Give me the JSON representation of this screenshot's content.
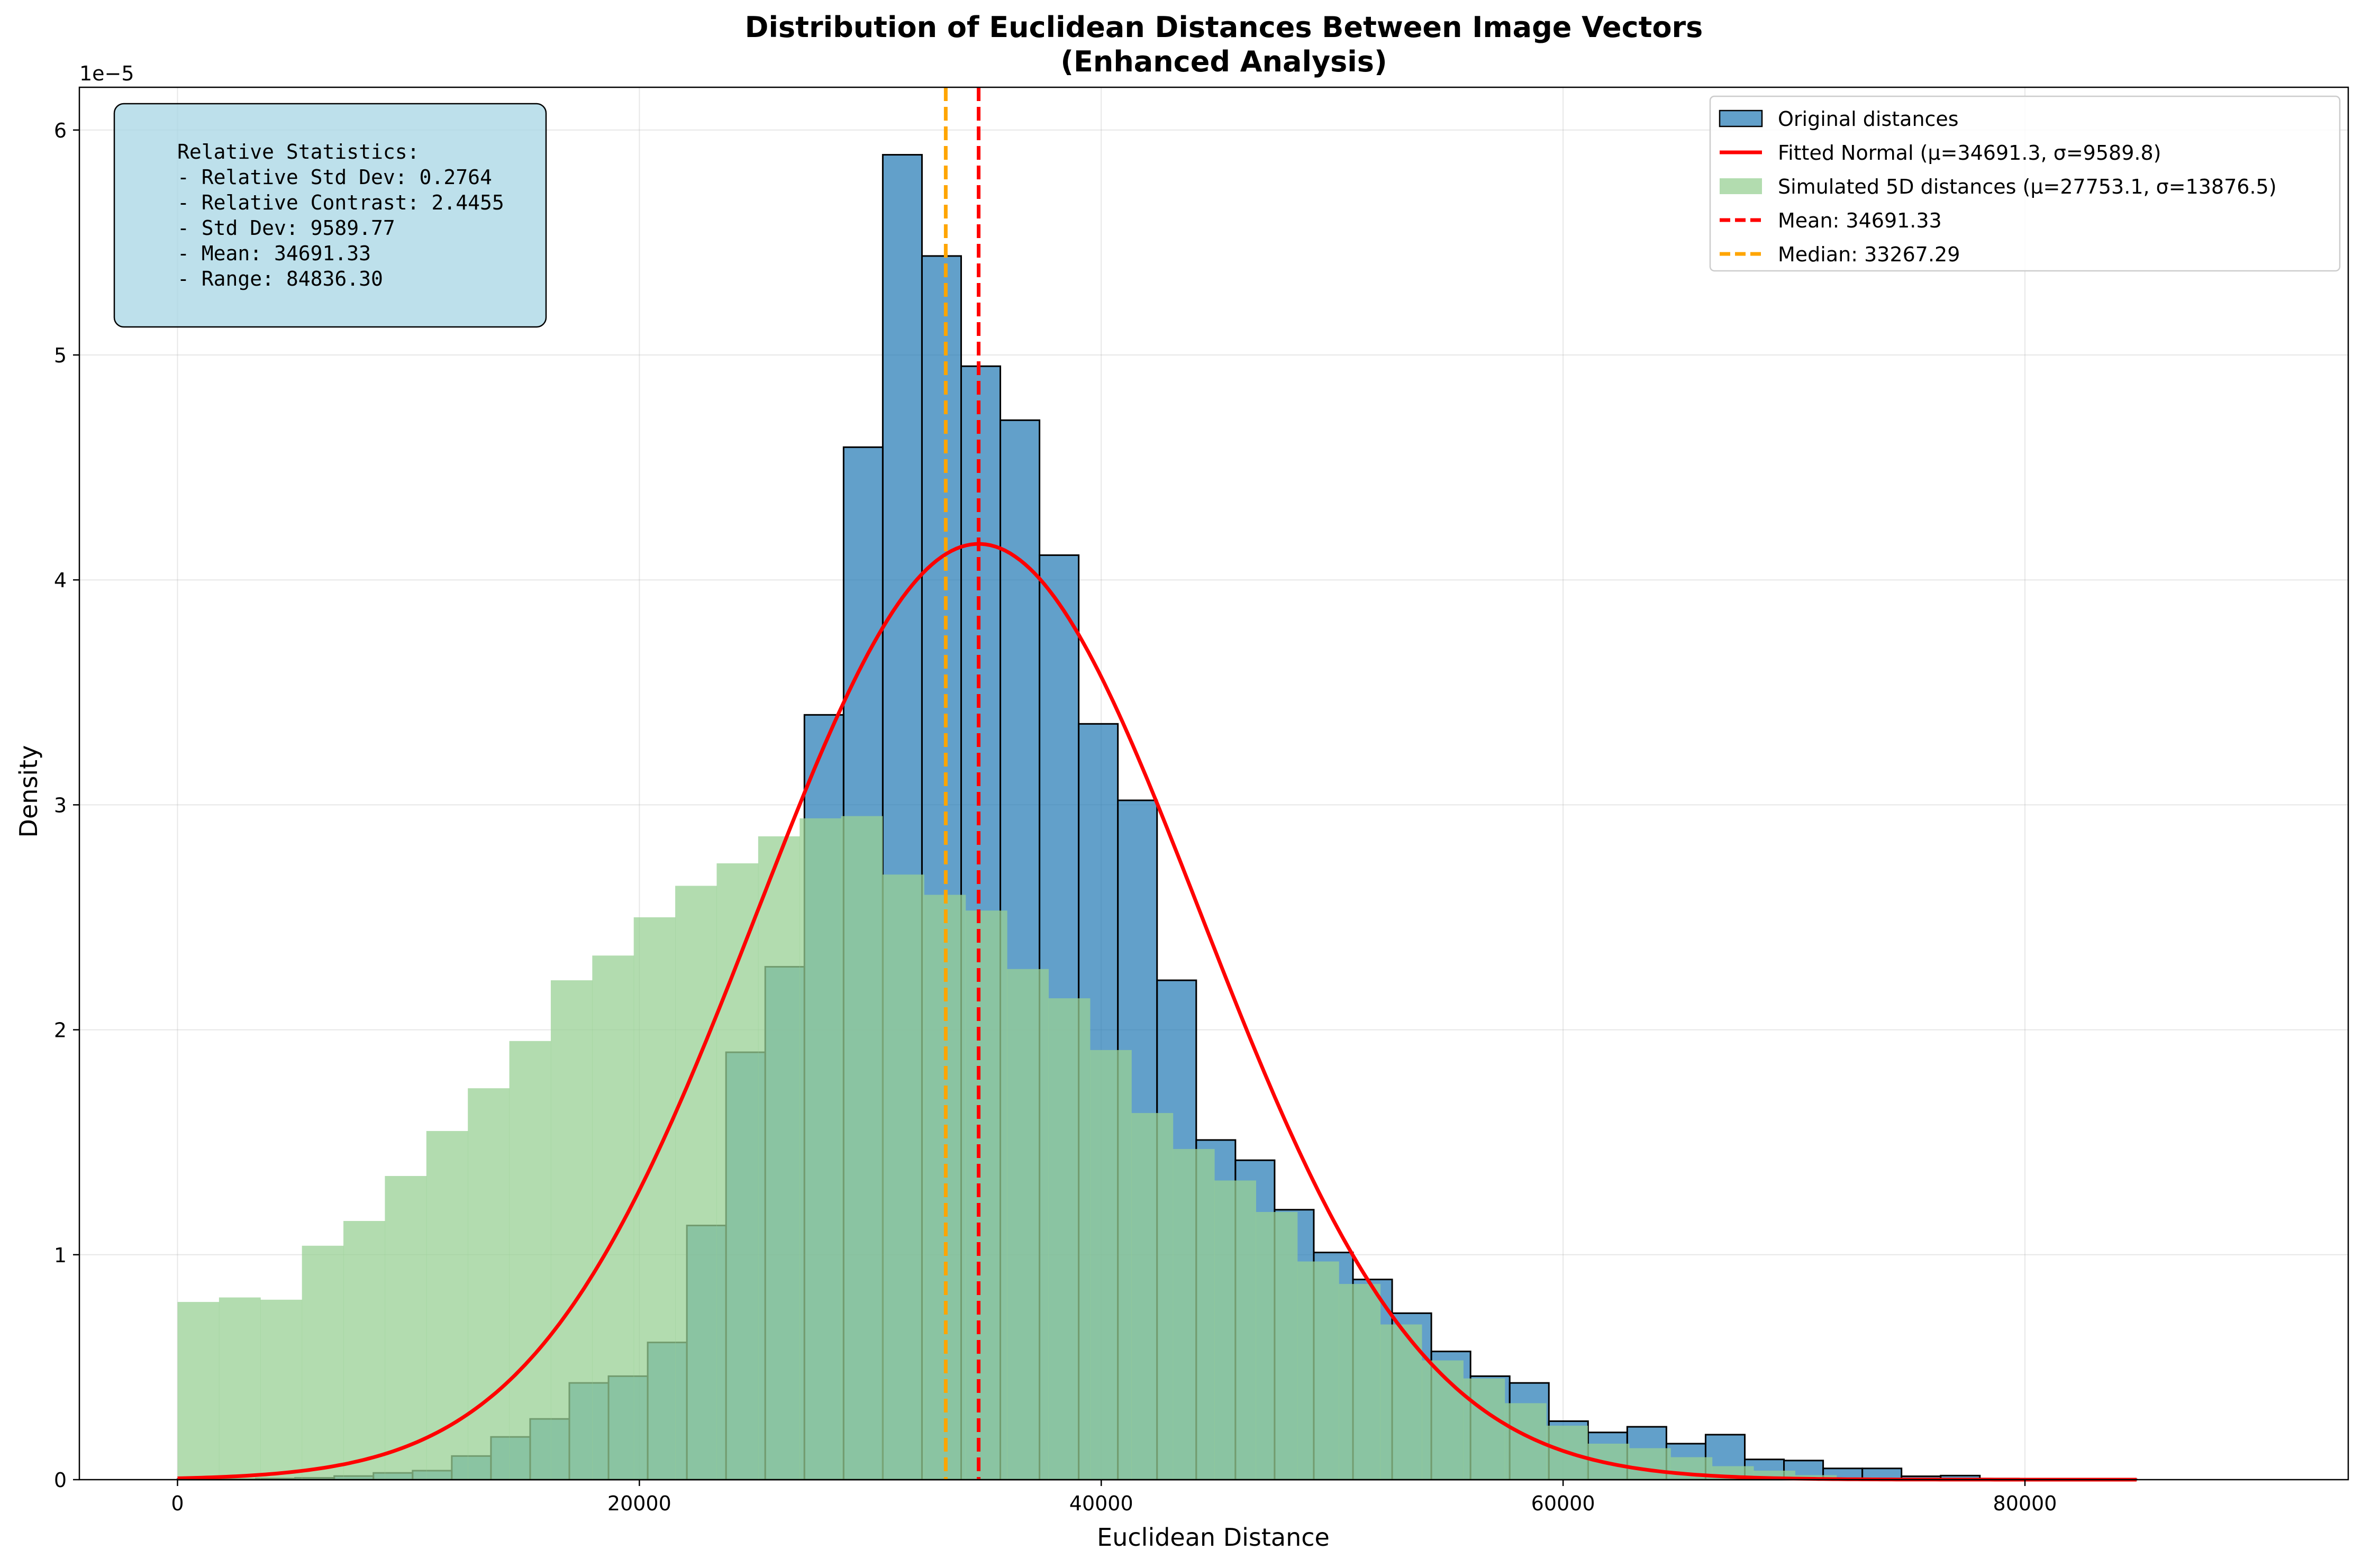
{
  "chart_data": {
    "type": "histogram",
    "title": "Distribution of Euclidean Distances Between Image Vectors",
    "subtitle": "(Enhanced Analysis)",
    "xlabel": "Euclidean Distance",
    "ylabel": "Density",
    "y_scale_label": "1e−5",
    "xlim": [
      -4250,
      94000
    ],
    "ylim": [
      0,
      6.19
    ],
    "x_ticks": [
      0,
      20000,
      40000,
      60000,
      80000
    ],
    "x_tick_labels": [
      "0",
      "20000",
      "40000",
      "60000",
      "80000"
    ],
    "y_ticks": [
      0,
      1,
      2,
      3,
      4,
      5,
      6
    ],
    "y_tick_labels": [
      "0",
      "1",
      "2",
      "3",
      "4",
      "5",
      "6"
    ],
    "grid": true,
    "legend_position": "top-right",
    "colors": {
      "original": "#1f77b4",
      "simulated": "#98d094",
      "fitted": "#ff0000",
      "mean_line": "#ff0000",
      "median_line": "#ffa500",
      "stats_box": "#add8e6"
    },
    "series": [
      {
        "name": "Original distances",
        "kind": "bars",
        "bin_start": 0,
        "bin_width": 1696.7,
        "values": [
          0.002,
          0.002,
          0.005,
          0.008,
          0.016,
          0.03,
          0.04,
          0.105,
          0.19,
          0.27,
          0.43,
          0.46,
          0.61,
          1.13,
          1.9,
          2.28,
          3.4,
          4.59,
          5.89,
          5.44,
          4.95,
          4.71,
          4.11,
          3.36,
          3.02,
          2.22,
          1.51,
          1.42,
          1.2,
          1.01,
          0.89,
          0.74,
          0.57,
          0.46,
          0.43,
          0.26,
          0.21,
          0.235,
          0.16,
          0.2,
          0.09,
          0.085,
          0.05,
          0.05,
          0.015,
          0.018,
          0.005,
          0.003,
          0.002,
          0.001
        ]
      },
      {
        "name": "Simulated 5D distances (μ=27753.1, σ=13876.5)",
        "kind": "bars",
        "bin_start": 0,
        "bin_width": 1796,
        "values": [
          0.79,
          0.81,
          0.8,
          1.04,
          1.15,
          1.35,
          1.55,
          1.74,
          1.95,
          2.22,
          2.33,
          2.5,
          2.64,
          2.74,
          2.86,
          2.94,
          2.95,
          2.69,
          2.6,
          2.53,
          2.27,
          2.14,
          1.91,
          1.63,
          1.47,
          1.33,
          1.19,
          0.97,
          0.87,
          0.69,
          0.53,
          0.45,
          0.34,
          0.24,
          0.16,
          0.14,
          0.1,
          0.06,
          0.04,
          0.02,
          0.01
        ]
      },
      {
        "name": "Fitted Normal (μ=34691.3, σ=9589.8)",
        "kind": "normal_curve",
        "mu": 34691.3,
        "sigma": 9589.8,
        "x_range": [
          0,
          84836.3
        ]
      },
      {
        "name": "Mean: 34691.33",
        "kind": "vline",
        "x": 34691.33
      },
      {
        "name": "Median: 33267.29",
        "kind": "vline",
        "x": 33267.29
      }
    ],
    "stats_box": {
      "lines": [
        "Relative Statistics:",
        "- Relative Std Dev: 0.2764",
        "- Relative Contrast: 2.4455",
        "- Std Dev: 9589.77",
        "- Mean: 34691.33",
        "- Range: 84836.30"
      ]
    }
  }
}
